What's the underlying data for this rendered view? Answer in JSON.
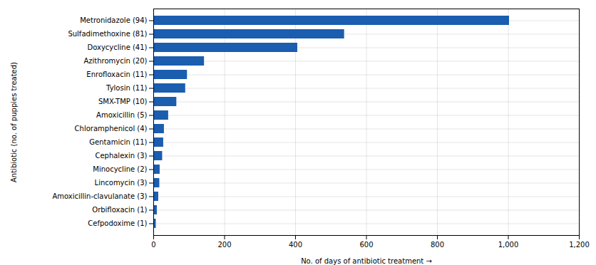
{
  "chart_data": {
    "type": "bar",
    "orientation": "horizontal",
    "categories": [
      "Metronidazole (94)",
      "Sulfadimethoxine (81)",
      "Doxycycline (41)",
      "Azithromycin (20)",
      "Enrofloxacin (11)",
      "Tylosin (11)",
      "SMX-TMP (10)",
      "Amoxicillin (5)",
      "Chloramphenicol (4)",
      "Gentamicin (11)",
      "Cephalexin (3)",
      "Minocycline (2)",
      "Lincomycin (3)",
      "Amoxicillin-clavulanate (3)",
      "Orbifloxacin (1)",
      "Cefpodoxime (1)"
    ],
    "values": [
      1003,
      538,
      406,
      143,
      95,
      90,
      65,
      42,
      30,
      28,
      25,
      18,
      17,
      14,
      10,
      7
    ],
    "color": "#1B5DAF",
    "xlabel": "No. of days of antibiotic treatment",
    "ylabel": "Antibiotic (no. of puppies treated)",
    "xlim": [
      0,
      1200
    ],
    "xticks": [
      0,
      200,
      400,
      600,
      800,
      {
        "value": 1000,
        "label": "1,000"
      },
      {
        "value": 1200,
        "label": "1,200"
      }
    ],
    "grid": true
  }
}
